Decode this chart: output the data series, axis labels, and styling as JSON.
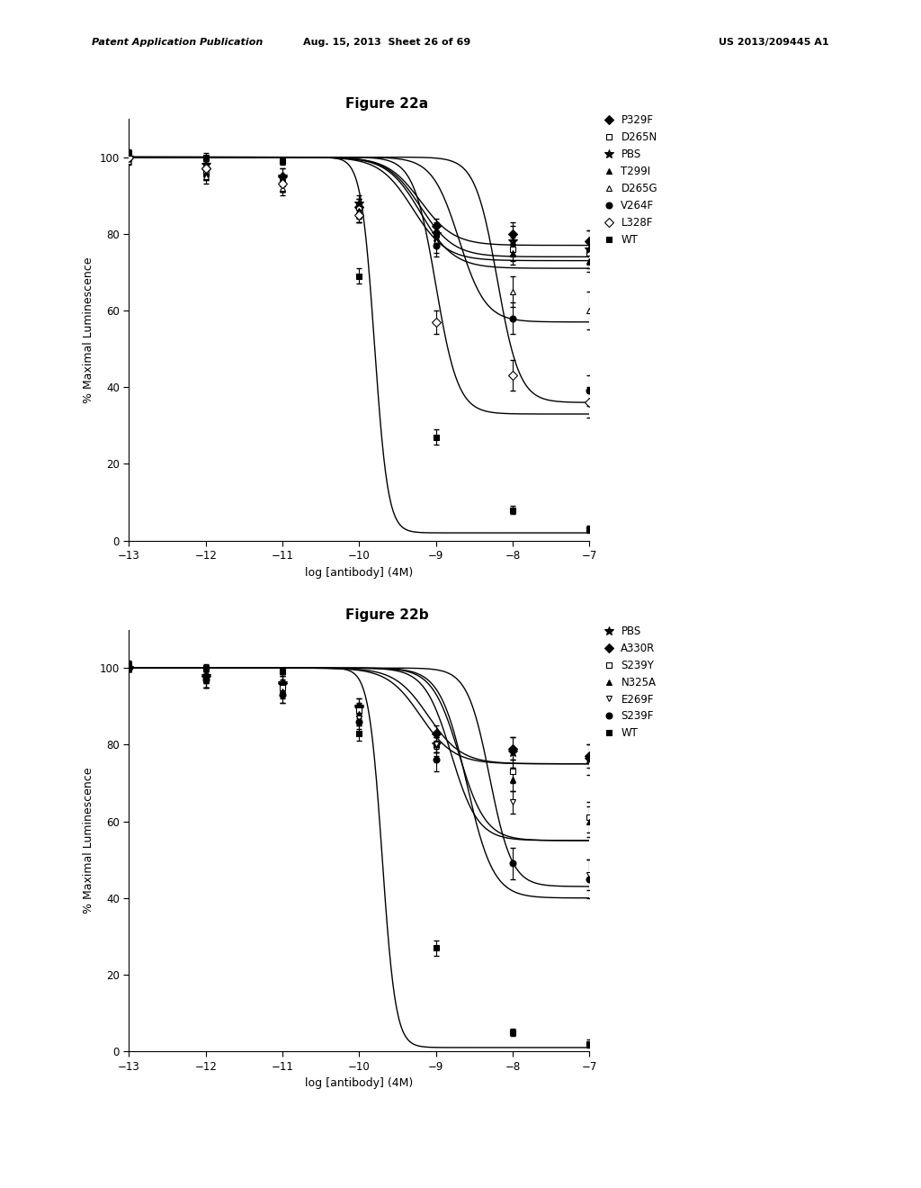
{
  "fig_title_a": "Figure 22a",
  "fig_title_b": "Figure 22b",
  "header_left": "Patent Application Publication",
  "header_mid": "Aug. 15, 2013  Sheet 26 of 69",
  "header_right": "US 2013/209445 A1",
  "xlabel": "log [antibody] (4M)",
  "ylabel": "% Maximal Luminescence",
  "xlim": [
    -13,
    -7
  ],
  "ylim": [
    0,
    110
  ],
  "xticks": [
    -13,
    -12,
    -11,
    -10,
    -9,
    -8,
    -7
  ],
  "yticks": [
    0,
    20,
    40,
    60,
    80,
    100
  ],
  "panel_a": {
    "series": [
      {
        "label": "P329F",
        "marker": "D",
        "markersize": 5,
        "filled": true,
        "x_data": [
          -13,
          -12,
          -11,
          -10,
          -9,
          -8,
          -7
        ],
        "y_data": [
          100,
          97,
          95,
          87,
          82,
          80,
          78
        ],
        "y_err": [
          1,
          2,
          2,
          2,
          2,
          3,
          3
        ],
        "ec50": -9.2,
        "hill": 2.0,
        "top": 100,
        "bottom": 77
      },
      {
        "label": "D265N",
        "marker": "s",
        "markersize": 5,
        "filled": false,
        "x_data": [
          -13,
          -12,
          -11,
          -10,
          -9,
          -8,
          -7
        ],
        "y_data": [
          100,
          96,
          93,
          87,
          80,
          76,
          75
        ],
        "y_err": [
          1,
          2,
          2,
          2,
          2,
          3,
          3
        ],
        "ec50": -9.3,
        "hill": 2.0,
        "top": 100,
        "bottom": 73
      },
      {
        "label": "PBS",
        "marker": "*",
        "markersize": 7,
        "filled": true,
        "x_data": [
          -13,
          -12,
          -11,
          -10,
          -9,
          -8,
          -7
        ],
        "y_data": [
          100,
          98,
          95,
          88,
          80,
          78,
          76
        ],
        "y_err": [
          1,
          2,
          2,
          2,
          3,
          4,
          5
        ],
        "ec50": -9.2,
        "hill": 2.0,
        "top": 100,
        "bottom": 74
      },
      {
        "label": "T299I",
        "marker": "^",
        "markersize": 5,
        "filled": true,
        "x_data": [
          -13,
          -12,
          -11,
          -10,
          -9,
          -8,
          -7
        ],
        "y_data": [
          100,
          96,
          93,
          86,
          79,
          75,
          73
        ],
        "y_err": [
          1,
          2,
          2,
          2,
          2,
          3,
          3
        ],
        "ec50": -9.2,
        "hill": 2.0,
        "top": 100,
        "bottom": 71
      },
      {
        "label": "D265G",
        "marker": "^",
        "markersize": 5,
        "filled": false,
        "x_data": [
          -13,
          -12,
          -11,
          -10,
          -9,
          -8,
          -7
        ],
        "y_data": [
          99,
          95,
          92,
          85,
          78,
          65,
          60
        ],
        "y_err": [
          1,
          2,
          2,
          2,
          3,
          4,
          5
        ],
        "ec50": -8.7,
        "hill": 2.5,
        "top": 100,
        "bottom": 57
      },
      {
        "label": "V264F",
        "marker": "o",
        "markersize": 5,
        "filled": true,
        "x_data": [
          -13,
          -12,
          -11,
          -10,
          -9,
          -8,
          -7
        ],
        "y_data": [
          100,
          97,
          93,
          85,
          77,
          58,
          39
        ],
        "y_err": [
          1,
          2,
          2,
          2,
          3,
          4,
          4
        ],
        "ec50": -8.2,
        "hill": 3.0,
        "top": 100,
        "bottom": 36
      },
      {
        "label": "L328F",
        "marker": "D",
        "markersize": 5,
        "filled": false,
        "x_data": [
          -13,
          -12,
          -11,
          -10,
          -9,
          -8,
          -7
        ],
        "y_data": [
          100,
          97,
          93,
          85,
          57,
          43,
          36
        ],
        "y_err": [
          1,
          2,
          2,
          2,
          3,
          4,
          4
        ],
        "ec50": -9.0,
        "hill": 3.0,
        "top": 100,
        "bottom": 33
      },
      {
        "label": "WT",
        "marker": "s",
        "markersize": 5,
        "filled": true,
        "x_data": [
          -13,
          -12,
          -11,
          -10,
          -9,
          -8,
          -7
        ],
        "y_data": [
          101,
          100,
          99,
          69,
          27,
          8,
          3
        ],
        "y_err": [
          1,
          1,
          1,
          2,
          2,
          1,
          1
        ],
        "ec50": -9.8,
        "hill": 5.0,
        "top": 100,
        "bottom": 2
      }
    ]
  },
  "panel_b": {
    "series": [
      {
        "label": "PBS",
        "marker": "*",
        "markersize": 7,
        "filled": true,
        "x_data": [
          -13,
          -12,
          -11,
          -10,
          -9,
          -8,
          -7
        ],
        "y_data": [
          100,
          98,
          96,
          90,
          80,
          78,
          76
        ],
        "y_err": [
          1,
          2,
          2,
          2,
          3,
          4,
          4
        ],
        "ec50": -9.2,
        "hill": 2.0,
        "top": 100,
        "bottom": 75
      },
      {
        "label": "A330R",
        "marker": "D",
        "markersize": 5,
        "filled": true,
        "x_data": [
          -13,
          -12,
          -11,
          -10,
          -9,
          -8,
          -7
        ],
        "y_data": [
          100,
          98,
          96,
          90,
          83,
          79,
          77
        ],
        "y_err": [
          1,
          2,
          2,
          2,
          2,
          3,
          3
        ],
        "ec50": -9.1,
        "hill": 2.0,
        "top": 100,
        "bottom": 75
      },
      {
        "label": "S239Y",
        "marker": "s",
        "markersize": 5,
        "filled": false,
        "x_data": [
          -13,
          -12,
          -11,
          -10,
          -9,
          -8,
          -7
        ],
        "y_data": [
          100,
          97,
          95,
          89,
          80,
          73,
          61
        ],
        "y_err": [
          1,
          2,
          2,
          2,
          2,
          3,
          4
        ],
        "ec50": -8.8,
        "hill": 2.5,
        "top": 100,
        "bottom": 55
      },
      {
        "label": "N325A",
        "marker": "^",
        "markersize": 5,
        "filled": true,
        "x_data": [
          -13,
          -12,
          -11,
          -10,
          -9,
          -8,
          -7
        ],
        "y_data": [
          100,
          97,
          94,
          88,
          80,
          71,
          60
        ],
        "y_err": [
          1,
          2,
          2,
          2,
          2,
          3,
          4
        ],
        "ec50": -8.7,
        "hill": 2.5,
        "top": 100,
        "bottom": 55
      },
      {
        "label": "E269F",
        "marker": "v",
        "markersize": 5,
        "filled": false,
        "x_data": [
          -13,
          -12,
          -11,
          -10,
          -9,
          -8,
          -7
        ],
        "y_data": [
          100,
          97,
          93,
          87,
          80,
          65,
          46
        ],
        "y_err": [
          1,
          2,
          2,
          2,
          2,
          3,
          4
        ],
        "ec50": -8.6,
        "hill": 2.5,
        "top": 100,
        "bottom": 40
      },
      {
        "label": "S239F",
        "marker": "o",
        "markersize": 5,
        "filled": true,
        "x_data": [
          -13,
          -12,
          -11,
          -10,
          -9,
          -8,
          -7
        ],
        "y_data": [
          100,
          97,
          93,
          86,
          76,
          49,
          45
        ],
        "y_err": [
          1,
          2,
          2,
          2,
          3,
          4,
          5
        ],
        "ec50": -8.3,
        "hill": 3.0,
        "top": 100,
        "bottom": 43
      },
      {
        "label": "WT",
        "marker": "s",
        "markersize": 5,
        "filled": true,
        "x_data": [
          -13,
          -12,
          -11,
          -10,
          -9,
          -8,
          -7
        ],
        "y_data": [
          101,
          100,
          99,
          83,
          27,
          5,
          2
        ],
        "y_err": [
          1,
          1,
          1,
          2,
          2,
          1,
          1
        ],
        "ec50": -9.7,
        "hill": 5.0,
        "top": 100,
        "bottom": 1
      }
    ]
  }
}
